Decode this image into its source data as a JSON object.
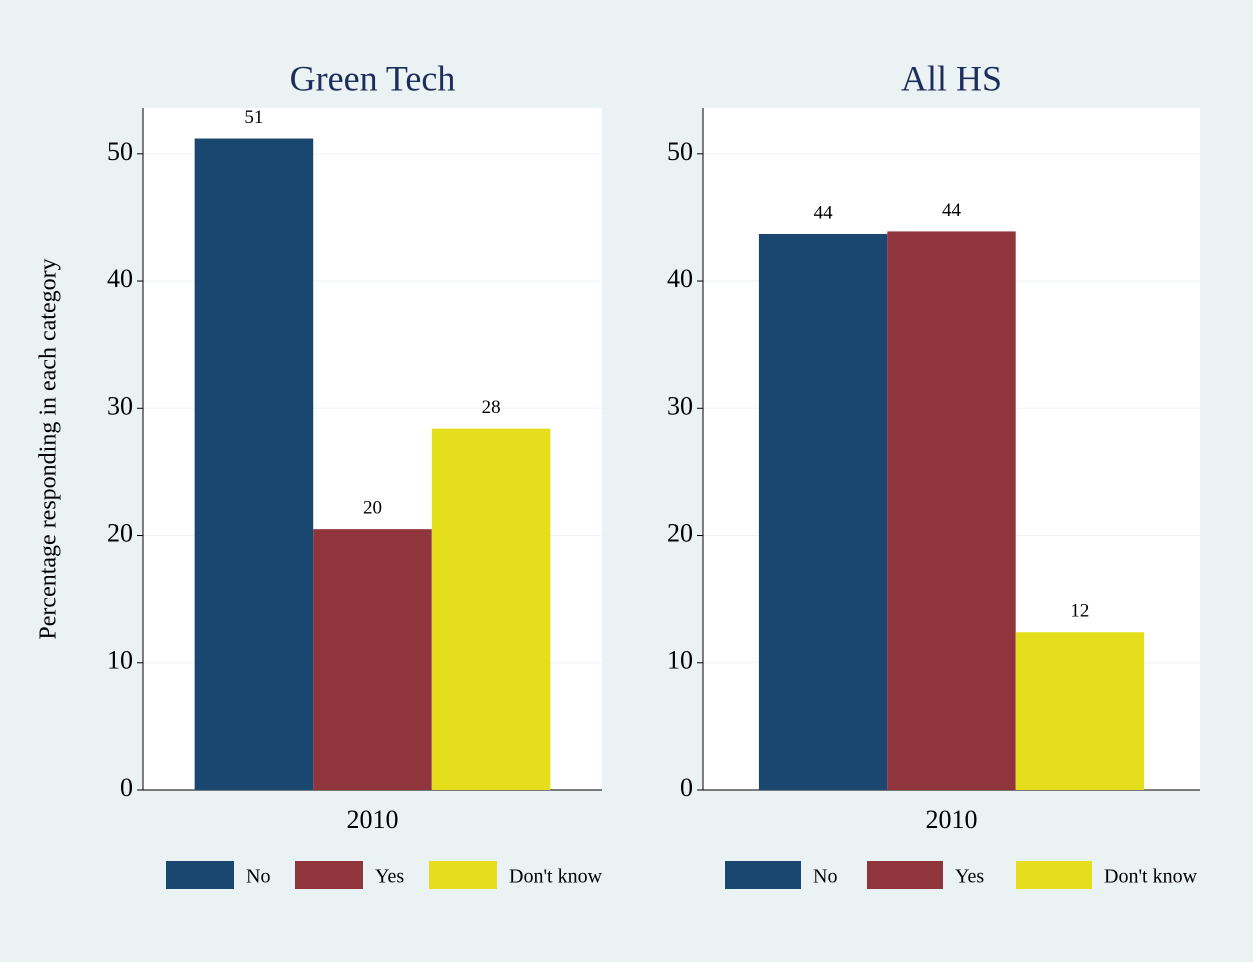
{
  "chart_data": [
    {
      "type": "bar",
      "title": "Green Tech",
      "y_label": "Percentage responding in each category",
      "categories": [
        "2010"
      ],
      "series": [
        {
          "name": "No",
          "color": "#1a476f",
          "values": [
            51.2
          ],
          "value_labels": [
            "51"
          ]
        },
        {
          "name": "Yes",
          "color": "#90353b",
          "values": [
            20.5
          ],
          "value_labels": [
            "20"
          ]
        },
        {
          "name": "Don't know",
          "color": "#e4de1c",
          "values": [
            28.4
          ],
          "value_labels": [
            "28"
          ]
        }
      ],
      "ylim": [
        0,
        53.6
      ],
      "yticks": [
        0,
        10,
        20,
        30,
        40,
        50
      ],
      "grid": true
    },
    {
      "type": "bar",
      "title": "All HS",
      "categories": [
        "2010"
      ],
      "series": [
        {
          "name": "No",
          "color": "#1a476f",
          "values": [
            43.7
          ],
          "value_labels": [
            "44"
          ]
        },
        {
          "name": "Yes",
          "color": "#90353b",
          "values": [
            43.9
          ],
          "value_labels": [
            "44"
          ]
        },
        {
          "name": "Don't know",
          "color": "#e4de1c",
          "values": [
            12.4
          ],
          "value_labels": [
            "12"
          ]
        }
      ],
      "ylim": [
        0,
        53.6
      ],
      "yticks": [
        0,
        10,
        20,
        30,
        40,
        50
      ],
      "grid": true
    }
  ]
}
